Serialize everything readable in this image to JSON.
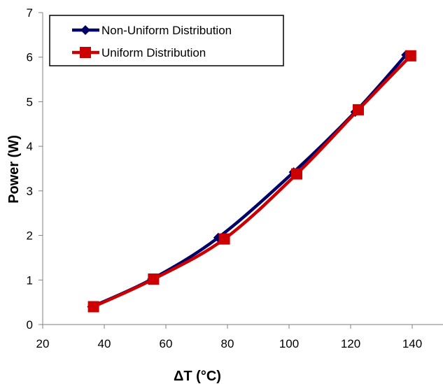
{
  "chart_data": {
    "type": "line",
    "title": "",
    "xlabel": "ΔT (°C)",
    "ylabel": "Power (W)",
    "xlim": [
      20,
      150
    ],
    "ylim": [
      0,
      7
    ],
    "x_ticks": [
      20,
      40,
      60,
      80,
      100,
      120,
      140
    ],
    "y_ticks": [
      0,
      1,
      2,
      3,
      4,
      5,
      6,
      7
    ],
    "x_tick_labels": [
      "20",
      "40",
      "60",
      "80",
      "100",
      "120",
      "140"
    ],
    "y_tick_labels": [
      "0",
      "1",
      "2",
      "3",
      "4",
      "5",
      "6",
      "7"
    ],
    "grid": false,
    "legend_position": "top-left",
    "series": [
      {
        "name": "Non-Uniform Distribution",
        "color": "#000066",
        "marker": "diamond",
        "points": [
          {
            "x": 36,
            "y": 0.4
          },
          {
            "x": 55.5,
            "y": 1.02
          },
          {
            "x": 77,
            "y": 1.95
          },
          {
            "x": 101.5,
            "y": 3.42
          },
          {
            "x": 121.5,
            "y": 4.77
          },
          {
            "x": 138,
            "y": 6.05
          }
        ]
      },
      {
        "name": "Uniform Distribution",
        "color": "#cc0000",
        "marker": "square",
        "points": [
          {
            "x": 36.5,
            "y": 0.4
          },
          {
            "x": 56,
            "y": 1.02
          },
          {
            "x": 79,
            "y": 1.92
          },
          {
            "x": 102.5,
            "y": 3.38
          },
          {
            "x": 122.5,
            "y": 4.82
          },
          {
            "x": 139.5,
            "y": 6.03
          }
        ]
      }
    ]
  }
}
